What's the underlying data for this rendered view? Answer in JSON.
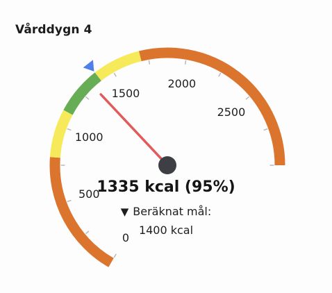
{
  "card": {
    "title": "Vårddygn 4"
  },
  "gauge": {
    "min": 0,
    "max": 3000,
    "sweep_degrees": 240,
    "value": 1335,
    "target": 1400,
    "value_text": "1335 kcal (95%)",
    "target_prefix": "▼",
    "target_label": "Beräknat mål:",
    "target_text": "1400 kcal",
    "tick_labels": [
      "0",
      "500",
      "1000",
      "1500",
      "2000",
      "2500"
    ],
    "tick_values": [
      0,
      500,
      1000,
      1500,
      2000,
      2500
    ],
    "bands": [
      {
        "from": 0,
        "to": 800,
        "color": "#db752e"
      },
      {
        "from": 800,
        "to": 1100,
        "color": "#f6e95a"
      },
      {
        "from": 1100,
        "to": 1400,
        "color": "#67ad56"
      },
      {
        "from": 1400,
        "to": 1700,
        "color": "#f6e95a"
      },
      {
        "from": 1700,
        "to": 3000,
        "color": "#db752e"
      }
    ],
    "colors": {
      "needle": "#e25b5b",
      "hub": "#3d3f44",
      "marker": "#4f80ea",
      "tick": "#b9b9b9"
    }
  }
}
